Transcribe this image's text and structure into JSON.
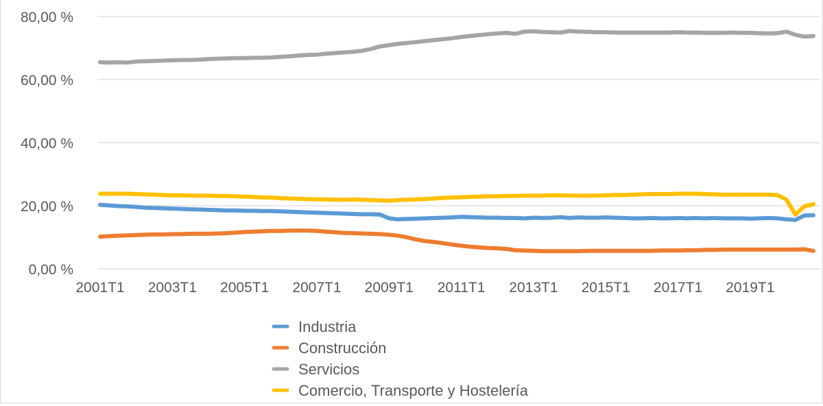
{
  "chart_data": {
    "type": "line",
    "title": "",
    "xlabel": "",
    "ylabel": "",
    "ylim": [
      0,
      80
    ],
    "y_ticks": [
      "0,00 %",
      "20,00 %",
      "40,00 %",
      "60,00 %",
      "80,00 %"
    ],
    "y_tick_values": [
      0,
      20,
      40,
      60,
      80
    ],
    "x_tick_labels": [
      "2001T1",
      "2003T1",
      "2005T1",
      "2007T1",
      "2009T1",
      "2011T1",
      "2013T1",
      "2015T1",
      "2017T1",
      "2019T1"
    ],
    "grid": "horizontal",
    "legend_position": "bottom",
    "x": [
      "2001T1",
      "2001T2",
      "2001T3",
      "2001T4",
      "2002T1",
      "2002T2",
      "2002T3",
      "2002T4",
      "2003T1",
      "2003T2",
      "2003T3",
      "2003T4",
      "2004T1",
      "2004T2",
      "2004T3",
      "2004T4",
      "2005T1",
      "2005T2",
      "2005T3",
      "2005T4",
      "2006T1",
      "2006T2",
      "2006T3",
      "2006T4",
      "2007T1",
      "2007T2",
      "2007T3",
      "2007T4",
      "2008T1",
      "2008T2",
      "2008T3",
      "2008T4",
      "2009T1",
      "2009T2",
      "2009T3",
      "2009T4",
      "2010T1",
      "2010T2",
      "2010T3",
      "2010T4",
      "2011T1",
      "2011T2",
      "2011T3",
      "2011T4",
      "2012T1",
      "2012T2",
      "2012T3",
      "2012T4",
      "2013T1",
      "2013T2",
      "2013T3",
      "2013T4",
      "2014T1",
      "2014T2",
      "2014T3",
      "2014T4",
      "2015T1",
      "2015T2",
      "2015T3",
      "2015T4",
      "2016T1",
      "2016T2",
      "2016T3",
      "2016T4",
      "2017T1",
      "2017T2",
      "2017T3",
      "2017T4",
      "2018T1",
      "2018T2",
      "2018T3",
      "2018T4",
      "2019T1",
      "2019T2",
      "2019T3",
      "2019T4",
      "2020T1",
      "2020T2",
      "2020T3",
      "2020T4"
    ],
    "series": [
      {
        "name": "Industria",
        "color": "#5b9bd5",
        "values": [
          20.3,
          20.1,
          19.9,
          19.8,
          19.6,
          19.4,
          19.3,
          19.2,
          19.1,
          19.0,
          18.9,
          18.8,
          18.7,
          18.6,
          18.5,
          18.5,
          18.4,
          18.4,
          18.3,
          18.3,
          18.2,
          18.1,
          18.0,
          17.9,
          17.8,
          17.7,
          17.6,
          17.5,
          17.4,
          17.3,
          17.3,
          17.2,
          16.0,
          15.7,
          15.8,
          15.9,
          16.0,
          16.1,
          16.2,
          16.3,
          16.5,
          16.4,
          16.3,
          16.2,
          16.2,
          16.1,
          16.1,
          16.0,
          16.2,
          16.1,
          16.2,
          16.4,
          16.1,
          16.3,
          16.2,
          16.2,
          16.3,
          16.2,
          16.1,
          16.0,
          16.0,
          16.1,
          16.0,
          16.0,
          16.1,
          16.0,
          16.1,
          16.0,
          16.1,
          16.0,
          16.0,
          16.0,
          15.9,
          16.0,
          16.1,
          16.0,
          15.7,
          15.5,
          16.9,
          17.0
        ]
      },
      {
        "name": "Construcción",
        "color": "#ed7d31",
        "values": [
          10.2,
          10.4,
          10.5,
          10.6,
          10.7,
          10.8,
          10.9,
          10.9,
          11.0,
          11.0,
          11.1,
          11.1,
          11.1,
          11.2,
          11.3,
          11.5,
          11.7,
          11.8,
          11.9,
          12.0,
          12.0,
          12.1,
          12.1,
          12.1,
          12.0,
          11.8,
          11.6,
          11.4,
          11.3,
          11.2,
          11.1,
          11.0,
          10.8,
          10.5,
          10.0,
          9.3,
          8.8,
          8.5,
          8.1,
          7.7,
          7.3,
          7.0,
          6.8,
          6.6,
          6.5,
          6.3,
          5.9,
          5.8,
          5.7,
          5.6,
          5.6,
          5.6,
          5.6,
          5.6,
          5.7,
          5.7,
          5.7,
          5.7,
          5.7,
          5.7,
          5.7,
          5.7,
          5.8,
          5.8,
          5.8,
          5.9,
          5.9,
          6.0,
          6.0,
          6.1,
          6.1,
          6.1,
          6.1,
          6.1,
          6.1,
          6.1,
          6.1,
          6.1,
          6.2,
          5.7
        ]
      },
      {
        "name": "Servicios",
        "color": "#a5a5a5",
        "values": [
          65.5,
          65.4,
          65.5,
          65.4,
          65.7,
          65.8,
          65.9,
          66.0,
          66.1,
          66.2,
          66.2,
          66.3,
          66.5,
          66.6,
          66.7,
          66.8,
          66.8,
          66.9,
          66.9,
          67.0,
          67.2,
          67.4,
          67.6,
          67.8,
          67.9,
          68.2,
          68.4,
          68.6,
          68.8,
          69.1,
          69.7,
          70.5,
          70.9,
          71.3,
          71.6,
          71.9,
          72.2,
          72.5,
          72.8,
          73.1,
          73.5,
          73.8,
          74.1,
          74.4,
          74.6,
          74.8,
          74.5,
          75.2,
          75.3,
          75.1,
          75.0,
          74.9,
          75.4,
          75.2,
          75.1,
          75.0,
          75.0,
          74.9,
          74.9,
          74.9,
          74.9,
          74.9,
          74.9,
          74.9,
          75.0,
          74.9,
          74.9,
          74.8,
          74.8,
          74.8,
          74.9,
          74.8,
          74.8,
          74.7,
          74.6,
          74.7,
          75.2,
          74.2,
          73.6,
          73.8
        ]
      },
      {
        "name": "Comercio, Transporte y Hostelería",
        "color": "#ffc000",
        "values": [
          23.8,
          23.8,
          23.8,
          23.8,
          23.7,
          23.6,
          23.5,
          23.4,
          23.3,
          23.3,
          23.2,
          23.2,
          23.2,
          23.1,
          23.1,
          23.0,
          22.9,
          22.8,
          22.6,
          22.6,
          22.4,
          22.3,
          22.2,
          22.1,
          22.0,
          22.0,
          21.9,
          21.9,
          22.0,
          21.9,
          21.8,
          21.7,
          21.6,
          21.8,
          21.9,
          22.0,
          22.1,
          22.3,
          22.5,
          22.6,
          22.7,
          22.8,
          22.9,
          23.0,
          23.0,
          23.1,
          23.1,
          23.2,
          23.2,
          23.2,
          23.3,
          23.3,
          23.2,
          23.2,
          23.2,
          23.2,
          23.3,
          23.4,
          23.4,
          23.5,
          23.6,
          23.7,
          23.7,
          23.7,
          23.8,
          23.8,
          23.8,
          23.7,
          23.6,
          23.5,
          23.5,
          23.5,
          23.5,
          23.5,
          23.5,
          23.4,
          22.0,
          17.2,
          19.8,
          20.5
        ]
      }
    ]
  }
}
